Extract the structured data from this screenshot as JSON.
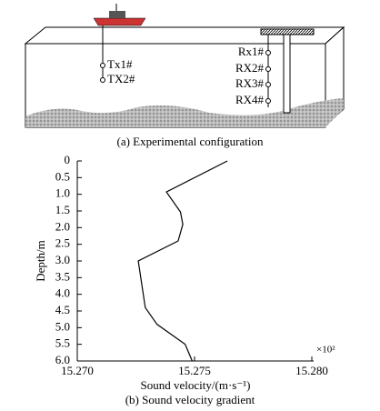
{
  "diagram": {
    "labels": [
      "Tx1#",
      "TX2#",
      "Rx1#",
      "RX2#",
      "RX3#",
      "RX4#"
    ],
    "caption": "(a) Experimental configuration"
  },
  "chart_data": {
    "type": "line",
    "x": [
      15.2764,
      15.2738,
      15.2744,
      15.2745,
      15.2743,
      15.2726,
      15.2729,
      15.2734,
      15.2746,
      15.2749
    ],
    "values": [
      0,
      0.93,
      1.53,
      1.9,
      2.4,
      3.0,
      4.4,
      4.9,
      5.5,
      6.0
    ],
    "color": "#000000",
    "xlim": [
      15.27,
      15.28
    ],
    "xticks": [
      {
        "value": 15.27,
        "label": "15.270"
      },
      15.275,
      {
        "value": 15.28,
        "label": "15.280"
      }
    ],
    "x_multiplier": "×10²",
    "ylim": [
      0,
      6.0
    ],
    "y_inverted": true,
    "yticks": [
      0,
      0.5,
      {
        "value": 1,
        "label": "1.0"
      },
      1.5,
      {
        "value": 2,
        "label": "2.0"
      },
      2.5,
      {
        "value": 3,
        "label": "3.0"
      },
      3.5,
      {
        "value": 4,
        "label": "4.0"
      },
      4.5,
      {
        "value": 5,
        "label": "5.0"
      },
      5.5,
      {
        "value": 6,
        "label": "6.0"
      }
    ],
    "ylabel": "Depth/m",
    "xlabel": "Sound velocity/(m·s⁻¹)",
    "caption": "(b) Sound velocity gradient"
  }
}
